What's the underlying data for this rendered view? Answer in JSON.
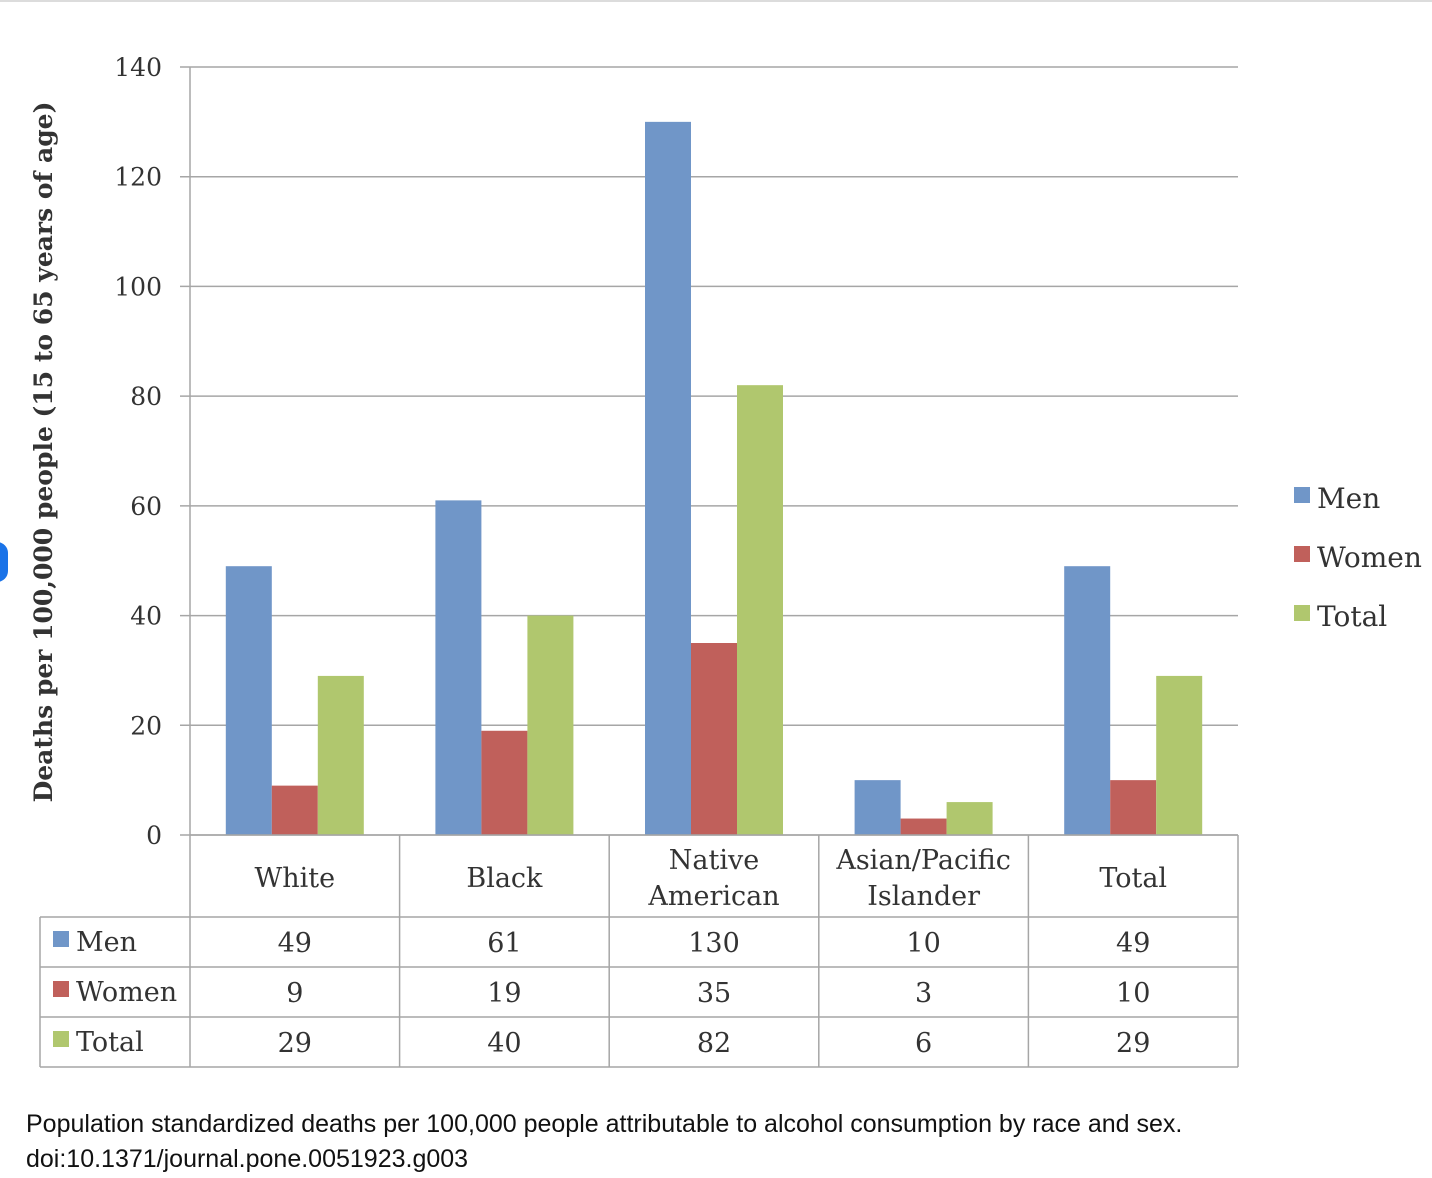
{
  "chart_data": {
    "type": "bar",
    "ylabel": "Deaths per 100,000 people (15 to 65 years of age)",
    "ylim": [
      0,
      140
    ],
    "yticks": [
      "0",
      "20",
      "40",
      "60",
      "80",
      "100",
      "120",
      "140"
    ],
    "categories": [
      [
        "White"
      ],
      [
        "Black"
      ],
      [
        "Native",
        "American"
      ],
      [
        "Asian/Pacific",
        "Islander"
      ],
      [
        "Total"
      ]
    ],
    "series": [
      {
        "name": "Men",
        "color": "#7096c8",
        "values": [
          49,
          61,
          130,
          10,
          49
        ]
      },
      {
        "name": "Women",
        "color": "#c0605b",
        "values": [
          9,
          19,
          35,
          3,
          10
        ]
      },
      {
        "name": "Total",
        "color": "#b0c76e",
        "values": [
          29,
          40,
          82,
          6,
          29
        ]
      }
    ],
    "grid": true,
    "legend_position": "right",
    "data_table": true
  },
  "caption": {
    "line1": "Population standardized deaths per 100,000 people attributable to alcohol consumption by race and sex.",
    "line2": "doi:10.1371/journal.pone.0051923.g003"
  }
}
